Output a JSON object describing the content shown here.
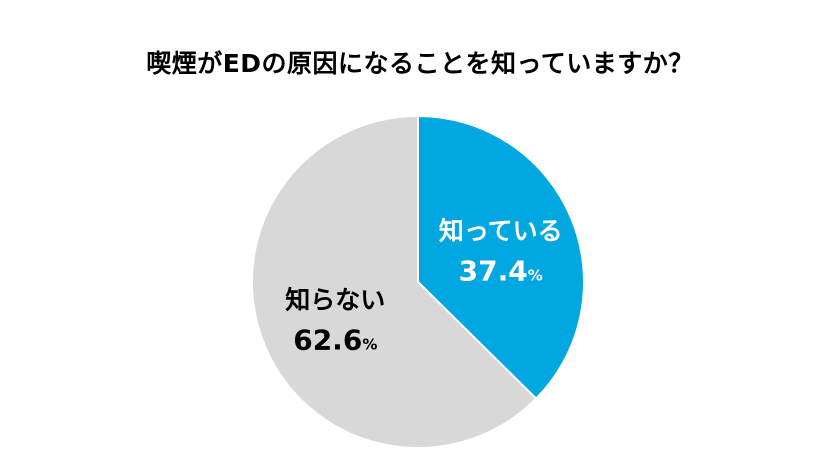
{
  "chart_data": {
    "type": "pie",
    "title": "喫煙がEDの原因になることを知っていますか？",
    "slices": [
      {
        "label": "知っている",
        "value": 37.4,
        "unit": "%",
        "color": "#00a7e1",
        "label_color": "#ffffff"
      },
      {
        "label": "知らない",
        "value": 62.6,
        "unit": "%",
        "color": "#d8d8d8",
        "label_color": "#000000"
      }
    ],
    "start": "top",
    "direction": "clockwise",
    "legend": "none"
  }
}
